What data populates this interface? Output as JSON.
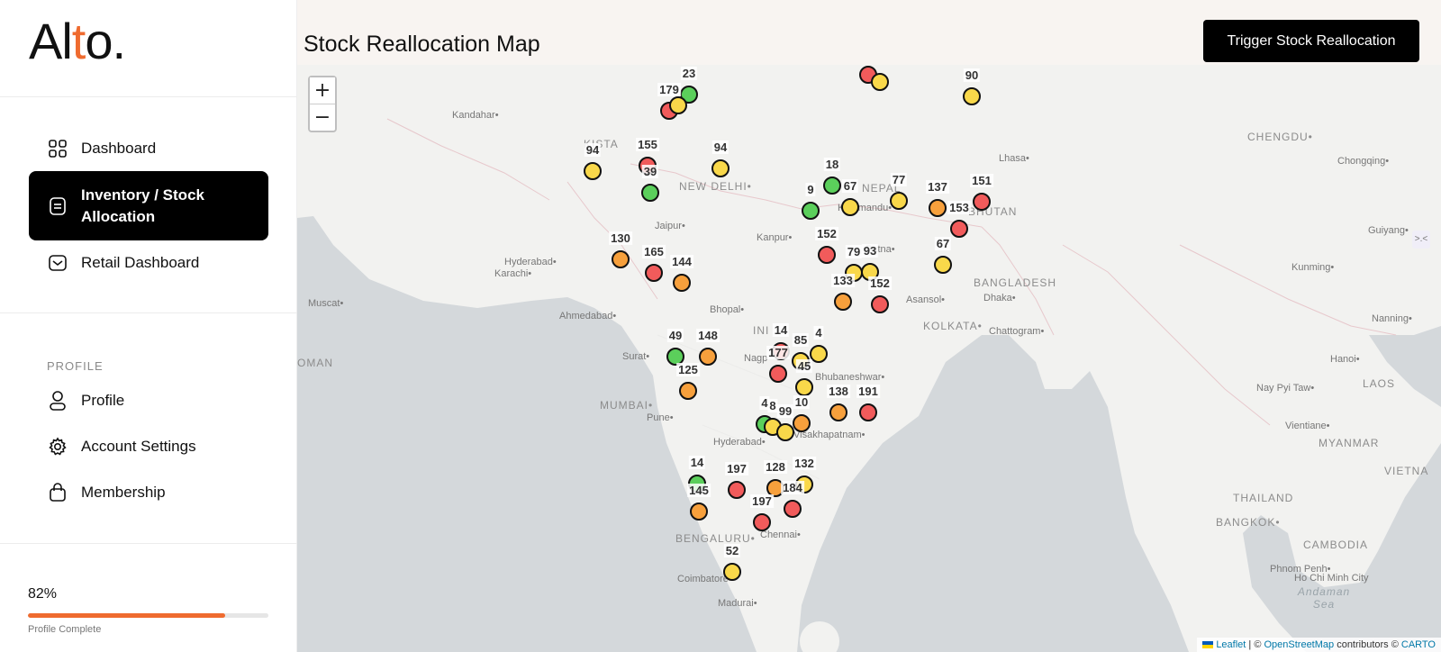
{
  "logo": {
    "pre": "Al",
    "accent": "t",
    "post": "o."
  },
  "nav": {
    "dashboard": "Dashboard",
    "inventory": "Inventory / Stock Allocation",
    "retail": "Retail Dashboard"
  },
  "profile_section": {
    "heading": "PROFILE",
    "profile": "Profile",
    "settings": "Account Settings",
    "membership": "Membership"
  },
  "progress": {
    "percent_label": "82%",
    "value": 0.82,
    "caption": "Profile Complete"
  },
  "header": {
    "title": "Stock Reallocation Map",
    "trigger_button": "Trigger Stock Reallocation"
  },
  "map": {
    "zoom_in": "+",
    "zoom_out": "−",
    "side_toggle": ">.<",
    "colors": {
      "red": "#f15b5b",
      "orange": "#f7a03c",
      "yellow": "#f9d84a",
      "green": "#5bcf5b"
    },
    "places": [
      {
        "name": "Kandahar",
        "dot": true
      },
      {
        "name": "NEW DELHI",
        "dot": true,
        "big": true
      },
      {
        "name": "Jaipur",
        "dot": true
      },
      {
        "name": "Kanpur",
        "dot": true
      },
      {
        "name": "Hyderabad",
        "dot": true
      },
      {
        "name": "Karachi",
        "dot": true
      },
      {
        "name": "Muscat",
        "dot": true
      },
      {
        "name": "Ahmedabad",
        "dot": true
      },
      {
        "name": "Bhopal",
        "dot": true
      },
      {
        "name": "Surat",
        "dot": true
      },
      {
        "name": "Nagp",
        "dot": false
      },
      {
        "name": "MUMBAI",
        "dot": true,
        "big": true
      },
      {
        "name": "Pune",
        "dot": true
      },
      {
        "name": "Hyderabad",
        "dot": true
      },
      {
        "name": "Visakhapatnam",
        "dot": true
      },
      {
        "name": "Bhubaneshwar",
        "dot": true
      },
      {
        "name": "BENGALURU",
        "dot": true,
        "big": true
      },
      {
        "name": "Chennai",
        "dot": true
      },
      {
        "name": "Coimbatore",
        "dot": true
      },
      {
        "name": "Madurai",
        "dot": true
      },
      {
        "name": "OMAN",
        "dot": false,
        "big": true
      },
      {
        "name": "KOLKATA",
        "dot": true,
        "big": true
      },
      {
        "name": "Patna",
        "dot": true
      },
      {
        "name": "Asansol",
        "dot": true
      },
      {
        "name": "Kathmandu",
        "dot": true
      },
      {
        "name": "NEPAL",
        "dot": false,
        "big": true
      },
      {
        "name": "BHUTAN",
        "dot": false,
        "big": true
      },
      {
        "name": "BANGLADESH",
        "dot": false,
        "big": true
      },
      {
        "name": "Dhaka",
        "dot": true
      },
      {
        "name": "Chattogram",
        "dot": true
      },
      {
        "name": "Lhasa",
        "dot": true
      },
      {
        "name": "CHENGDU",
        "dot": true,
        "big": true
      },
      {
        "name": "Chongqing",
        "dot": true
      },
      {
        "name": "Guiyang",
        "dot": true
      },
      {
        "name": "Kunming",
        "dot": true
      },
      {
        "name": "Nanning",
        "dot": true
      },
      {
        "name": "Hanoi",
        "dot": true
      },
      {
        "name": "Nay Pyi Taw",
        "dot": true
      },
      {
        "name": "LAOS",
        "dot": false,
        "big": true
      },
      {
        "name": "MYANMAR",
        "dot": false,
        "big": true
      },
      {
        "name": "Vientiane",
        "dot": true
      },
      {
        "name": "THAILAND",
        "dot": false,
        "big": true
      },
      {
        "name": "BANGKOK",
        "dot": true,
        "big": true
      },
      {
        "name": "CAMBODIA",
        "dot": false,
        "big": true
      },
      {
        "name": "Phnom Penh",
        "dot": true
      },
      {
        "name": "Ho Chi Minh City",
        "dot": false
      },
      {
        "name": "VIETNA",
        "dot": false,
        "big": true
      },
      {
        "name": "Andaman Sea",
        "dot": false,
        "sea": true
      },
      {
        "name": "KISTA",
        "dot": false,
        "big": true
      },
      {
        "name": "INI",
        "dot": false,
        "big": true
      }
    ],
    "markers": [
      {
        "label": "23",
        "color": "green"
      },
      {
        "label": "179",
        "color": "red"
      },
      {
        "label": "",
        "color": "yellow"
      },
      {
        "label": "90",
        "color": "yellow"
      },
      {
        "label": "",
        "color": "red"
      },
      {
        "label": "",
        "color": "yellow"
      },
      {
        "label": "94",
        "color": "yellow"
      },
      {
        "label": "155",
        "color": "red"
      },
      {
        "label": "39",
        "color": "green"
      },
      {
        "label": "94",
        "color": "yellow"
      },
      {
        "label": "18",
        "color": "green"
      },
      {
        "label": "9",
        "color": "green"
      },
      {
        "label": "67",
        "color": "yellow"
      },
      {
        "label": "77",
        "color": "yellow"
      },
      {
        "label": "137",
        "color": "orange"
      },
      {
        "label": "151",
        "color": "red"
      },
      {
        "label": "153",
        "color": "red"
      },
      {
        "label": "130",
        "color": "orange"
      },
      {
        "label": "165",
        "color": "red"
      },
      {
        "label": "144",
        "color": "orange"
      },
      {
        "label": "152",
        "color": "red"
      },
      {
        "label": "79",
        "color": "yellow"
      },
      {
        "label": "93",
        "color": "yellow"
      },
      {
        "label": "67",
        "color": "yellow"
      },
      {
        "label": "133",
        "color": "orange"
      },
      {
        "label": "152",
        "color": "red"
      },
      {
        "label": "49",
        "color": "green"
      },
      {
        "label": "148",
        "color": "orange"
      },
      {
        "label": "14",
        "color": "red"
      },
      {
        "label": "85",
        "color": "yellow"
      },
      {
        "label": "4",
        "color": "yellow"
      },
      {
        "label": "177",
        "color": "red"
      },
      {
        "label": "125",
        "color": "orange"
      },
      {
        "label": "45",
        "color": "yellow"
      },
      {
        "label": "138",
        "color": "orange"
      },
      {
        "label": "191",
        "color": "red"
      },
      {
        "label": "4",
        "color": "green"
      },
      {
        "label": "8",
        "color": "yellow"
      },
      {
        "label": "99",
        "color": "yellow"
      },
      {
        "label": "10",
        "color": "orange"
      },
      {
        "label": "14",
        "color": "green"
      },
      {
        "label": "197",
        "color": "red"
      },
      {
        "label": "128",
        "color": "orange"
      },
      {
        "label": "132",
        "color": "yellow"
      },
      {
        "label": "145",
        "color": "orange"
      },
      {
        "label": "197",
        "color": "red"
      },
      {
        "label": "184",
        "color": "red"
      },
      {
        "label": "52",
        "color": "yellow"
      }
    ],
    "attribution": {
      "leaflet": "Leaflet",
      "sep": " | © ",
      "osm": "OpenStreetMap",
      "mid": " contributors © ",
      "carto": "CARTO"
    }
  }
}
